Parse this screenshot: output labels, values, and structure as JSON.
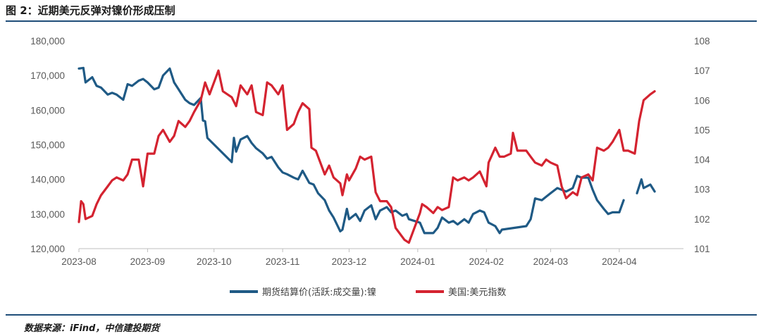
{
  "header": {
    "title": "图 2：近期美元反弹对镍价形成压制"
  },
  "footer": {
    "source": "数据来源：iFind，中信建投期货"
  },
  "colors": {
    "nickel": "#1f5a85",
    "usd": "#d42330",
    "rule": "#1f4e79",
    "axis": "#bfbfbf"
  },
  "chart_data": {
    "type": "line",
    "title": "图 2：近期美元反弹对镍价形成压制",
    "x_ticks": [
      "2023-08",
      "2023-09",
      "2023-10",
      "2023-11",
      "2023-12",
      "2024-01",
      "2024-02",
      "2024-03",
      "2024-04"
    ],
    "y_left": {
      "min": 120000,
      "max": 180000,
      "step": 10000,
      "ticks": [
        "120,000",
        "130,000",
        "140,000",
        "150,000",
        "160,000",
        "170,000",
        "180,000"
      ]
    },
    "y_right": {
      "min": 101,
      "max": 108,
      "step": 1,
      "ticks": [
        "101",
        "102",
        "103",
        "104",
        "105",
        "106",
        "107",
        "108"
      ]
    },
    "legend_placement": "bottom",
    "grid": false,
    "series": [
      {
        "name": "期货结算价(活跃:成交量):镍",
        "axis": "left",
        "points": [
          [
            "2023-08-01",
            172000
          ],
          [
            "2023-08-03",
            172200
          ],
          [
            "2023-08-04",
            168000
          ],
          [
            "2023-08-07",
            169500
          ],
          [
            "2023-08-09",
            167000
          ],
          [
            "2023-08-11",
            166500
          ],
          [
            "2023-08-14",
            164500
          ],
          [
            "2023-08-16",
            165000
          ],
          [
            "2023-08-18",
            164500
          ],
          [
            "2023-08-21",
            163000
          ],
          [
            "2023-08-23",
            167500
          ],
          [
            "2023-08-25",
            167000
          ],
          [
            "2023-08-28",
            168500
          ],
          [
            "2023-08-30",
            169000
          ],
          [
            "2023-09-01",
            168000
          ],
          [
            "2023-09-04",
            166000
          ],
          [
            "2023-09-06",
            166500
          ],
          [
            "2023-09-08",
            170000
          ],
          [
            "2023-09-11",
            172000
          ],
          [
            "2023-09-13",
            168000
          ],
          [
            "2023-09-15",
            166000
          ],
          [
            "2023-09-18",
            163000
          ],
          [
            "2023-09-20",
            162000
          ],
          [
            "2023-09-22",
            161500
          ],
          [
            "2023-09-25",
            163500
          ],
          [
            "2023-09-26",
            157000
          ],
          [
            "2023-09-27",
            156800
          ],
          [
            "2023-09-28",
            152000
          ],
          [
            "2023-10-09",
            145000
          ],
          [
            "2023-10-10",
            152000
          ],
          [
            "2023-10-11",
            148000
          ],
          [
            "2023-10-13",
            151500
          ],
          [
            "2023-10-16",
            152500
          ],
          [
            "2023-10-18",
            150500
          ],
          [
            "2023-10-20",
            149000
          ],
          [
            "2023-10-23",
            147500
          ],
          [
            "2023-10-25",
            146000
          ],
          [
            "2023-10-27",
            146500
          ],
          [
            "2023-10-30",
            143500
          ],
          [
            "2023-11-01",
            142000
          ],
          [
            "2023-11-03",
            141500
          ],
          [
            "2023-11-06",
            140500
          ],
          [
            "2023-11-08",
            140000
          ],
          [
            "2023-11-10",
            142500
          ],
          [
            "2023-11-13",
            139000
          ],
          [
            "2023-11-15",
            138500
          ],
          [
            "2023-11-17",
            136000
          ],
          [
            "2023-11-20",
            134000
          ],
          [
            "2023-11-22",
            131000
          ],
          [
            "2023-11-24",
            129000
          ],
          [
            "2023-11-27",
            125000
          ],
          [
            "2023-11-28",
            125500
          ],
          [
            "2023-11-30",
            131500
          ],
          [
            "2023-12-01",
            128500
          ],
          [
            "2023-12-04",
            130000
          ],
          [
            "2023-12-06",
            128000
          ],
          [
            "2023-12-08",
            131000
          ],
          [
            "2023-12-11",
            132500
          ],
          [
            "2023-12-13",
            128500
          ],
          [
            "2023-12-15",
            131000
          ],
          [
            "2023-12-18",
            132000
          ],
          [
            "2023-12-20",
            130500
          ],
          [
            "2023-12-22",
            131000
          ],
          [
            "2023-12-25",
            129500
          ],
          [
            "2023-12-27",
            130000
          ],
          [
            "2023-12-28",
            128500
          ],
          [
            "2024-01-02",
            127500
          ],
          [
            "2024-01-04",
            124500
          ],
          [
            "2024-01-08",
            124500
          ],
          [
            "2024-01-10",
            126000
          ],
          [
            "2024-01-12",
            129000
          ],
          [
            "2024-01-15",
            127500
          ],
          [
            "2024-01-17",
            128000
          ],
          [
            "2024-01-19",
            127000
          ],
          [
            "2024-01-22",
            128500
          ],
          [
            "2024-01-24",
            127500
          ],
          [
            "2024-01-26",
            130000
          ],
          [
            "2024-01-29",
            131000
          ],
          [
            "2024-01-31",
            130500
          ],
          [
            "2024-02-02",
            127500
          ],
          [
            "2024-02-05",
            126500
          ],
          [
            "2024-02-07",
            124500
          ],
          [
            "2024-02-08",
            125500
          ],
          [
            "2024-02-19",
            126500
          ],
          [
            "2024-02-21",
            128500
          ],
          [
            "2024-02-23",
            134500
          ],
          [
            "2024-02-26",
            134000
          ],
          [
            "2024-02-28",
            135000
          ],
          [
            "2024-03-01",
            136000
          ],
          [
            "2024-03-04",
            137500
          ],
          [
            "2024-03-06",
            137000
          ],
          [
            "2024-03-08",
            136500
          ],
          [
            "2024-03-11",
            137500
          ],
          [
            "2024-03-13",
            141000
          ],
          [
            "2024-03-15",
            140500
          ],
          [
            "2024-03-18",
            140500
          ],
          [
            "2024-03-20",
            137000
          ],
          [
            "2024-03-22",
            134000
          ],
          [
            "2024-03-25",
            131500
          ],
          [
            "2024-03-27",
            130000
          ],
          [
            "2024-03-29",
            130500
          ],
          [
            "2024-04-01",
            130500
          ],
          [
            "2024-04-03",
            134000
          ]
        ]
      },
      {
        "name": "美国:美元指数",
        "axis": "right",
        "points": [
          [
            "2023-08-01",
            101.9
          ],
          [
            "2023-08-02",
            102.6
          ],
          [
            "2023-08-03",
            102.5
          ],
          [
            "2023-08-04",
            102.0
          ],
          [
            "2023-08-07",
            102.1
          ],
          [
            "2023-08-09",
            102.5
          ],
          [
            "2023-08-11",
            102.8
          ],
          [
            "2023-08-14",
            103.1
          ],
          [
            "2023-08-16",
            103.3
          ],
          [
            "2023-08-18",
            103.4
          ],
          [
            "2023-08-21",
            103.3
          ],
          [
            "2023-08-23",
            103.5
          ],
          [
            "2023-08-25",
            104.0
          ],
          [
            "2023-08-28",
            104.0
          ],
          [
            "2023-08-30",
            103.1
          ],
          [
            "2023-09-01",
            104.2
          ],
          [
            "2023-09-04",
            104.2
          ],
          [
            "2023-09-06",
            104.8
          ],
          [
            "2023-09-08",
            105.0
          ],
          [
            "2023-09-11",
            104.6
          ],
          [
            "2023-09-13",
            104.8
          ],
          [
            "2023-09-15",
            105.3
          ],
          [
            "2023-09-18",
            105.1
          ],
          [
            "2023-09-20",
            105.3
          ],
          [
            "2023-09-22",
            105.6
          ],
          [
            "2023-09-25",
            106.0
          ],
          [
            "2023-09-27",
            106.6
          ],
          [
            "2023-09-29",
            106.2
          ],
          [
            "2023-10-03",
            107.0
          ],
          [
            "2023-10-05",
            106.3
          ],
          [
            "2023-10-09",
            106.1
          ],
          [
            "2023-10-11",
            105.8
          ],
          [
            "2023-10-13",
            106.5
          ],
          [
            "2023-10-16",
            106.2
          ],
          [
            "2023-10-18",
            106.5
          ],
          [
            "2023-10-20",
            105.6
          ],
          [
            "2023-10-23",
            105.5
          ],
          [
            "2023-10-25",
            106.6
          ],
          [
            "2023-10-27",
            106.5
          ],
          [
            "2023-10-30",
            106.2
          ],
          [
            "2023-11-01",
            106.5
          ],
          [
            "2023-11-03",
            105.0
          ],
          [
            "2023-11-06",
            105.2
          ],
          [
            "2023-11-08",
            105.6
          ],
          [
            "2023-11-10",
            105.9
          ],
          [
            "2023-11-13",
            105.7
          ],
          [
            "2023-11-14",
            104.4
          ],
          [
            "2023-11-16",
            104.3
          ],
          [
            "2023-11-20",
            103.5
          ],
          [
            "2023-11-22",
            103.8
          ],
          [
            "2023-11-24",
            103.4
          ],
          [
            "2023-11-27",
            103.2
          ],
          [
            "2023-11-28",
            102.8
          ],
          [
            "2023-11-30",
            103.5
          ],
          [
            "2023-12-01",
            103.3
          ],
          [
            "2023-12-04",
            103.7
          ],
          [
            "2023-12-06",
            104.1
          ],
          [
            "2023-12-08",
            104.0
          ],
          [
            "2023-12-11",
            104.1
          ],
          [
            "2023-12-13",
            102.9
          ],
          [
            "2023-12-15",
            102.6
          ],
          [
            "2023-12-18",
            102.6
          ],
          [
            "2023-12-20",
            102.4
          ],
          [
            "2023-12-22",
            101.7
          ],
          [
            "2023-12-26",
            101.3
          ],
          [
            "2023-12-28",
            101.2
          ],
          [
            "2024-01-02",
            102.2
          ],
          [
            "2024-01-03",
            102.5
          ],
          [
            "2024-01-05",
            102.4
          ],
          [
            "2024-01-08",
            102.2
          ],
          [
            "2024-01-10",
            102.4
          ],
          [
            "2024-01-12",
            102.3
          ],
          [
            "2024-01-15",
            102.4
          ],
          [
            "2024-01-17",
            103.4
          ],
          [
            "2024-01-19",
            103.3
          ],
          [
            "2024-01-22",
            103.4
          ],
          [
            "2024-01-24",
            103.3
          ],
          [
            "2024-01-26",
            103.4
          ],
          [
            "2024-01-29",
            103.6
          ],
          [
            "2024-02-01",
            103.1
          ],
          [
            "2024-02-02",
            103.9
          ],
          [
            "2024-02-05",
            104.4
          ],
          [
            "2024-02-07",
            104.1
          ],
          [
            "2024-02-09",
            104.1
          ],
          [
            "2024-02-12",
            104.2
          ],
          [
            "2024-02-13",
            104.9
          ],
          [
            "2024-02-15",
            104.3
          ],
          [
            "2024-02-19",
            104.3
          ],
          [
            "2024-02-21",
            104.1
          ],
          [
            "2024-02-23",
            103.9
          ],
          [
            "2024-02-26",
            103.8
          ],
          [
            "2024-02-28",
            104.0
          ],
          [
            "2024-03-01",
            103.9
          ],
          [
            "2024-03-04",
            103.8
          ],
          [
            "2024-03-06",
            103.1
          ],
          [
            "2024-03-08",
            102.7
          ],
          [
            "2024-03-11",
            102.9
          ],
          [
            "2024-03-13",
            102.8
          ],
          [
            "2024-03-15",
            103.4
          ],
          [
            "2024-03-18",
            103.5
          ],
          [
            "2024-03-20",
            103.3
          ],
          [
            "2024-03-22",
            104.4
          ],
          [
            "2024-03-25",
            104.3
          ],
          [
            "2024-03-27",
            104.4
          ],
          [
            "2024-03-29",
            104.6
          ],
          [
            "2024-04-01",
            105.0
          ],
          [
            "2024-04-03",
            104.3
          ],
          [
            "2024-04-05",
            104.3
          ],
          [
            "2024-04-08",
            104.2
          ],
          [
            "2024-04-10",
            105.3
          ],
          [
            "2024-04-12",
            106.0
          ],
          [
            "2024-04-15",
            106.2
          ],
          [
            "2024-04-17",
            106.3
          ]
        ]
      },
      {
        "name": "",
        "axis": "left",
        "points": [
          [
            "2024-04-09",
            136000
          ],
          [
            "2024-04-11",
            140000
          ],
          [
            "2024-04-12",
            137500
          ],
          [
            "2024-04-15",
            138500
          ],
          [
            "2024-04-17",
            136500
          ]
        ]
      }
    ]
  }
}
